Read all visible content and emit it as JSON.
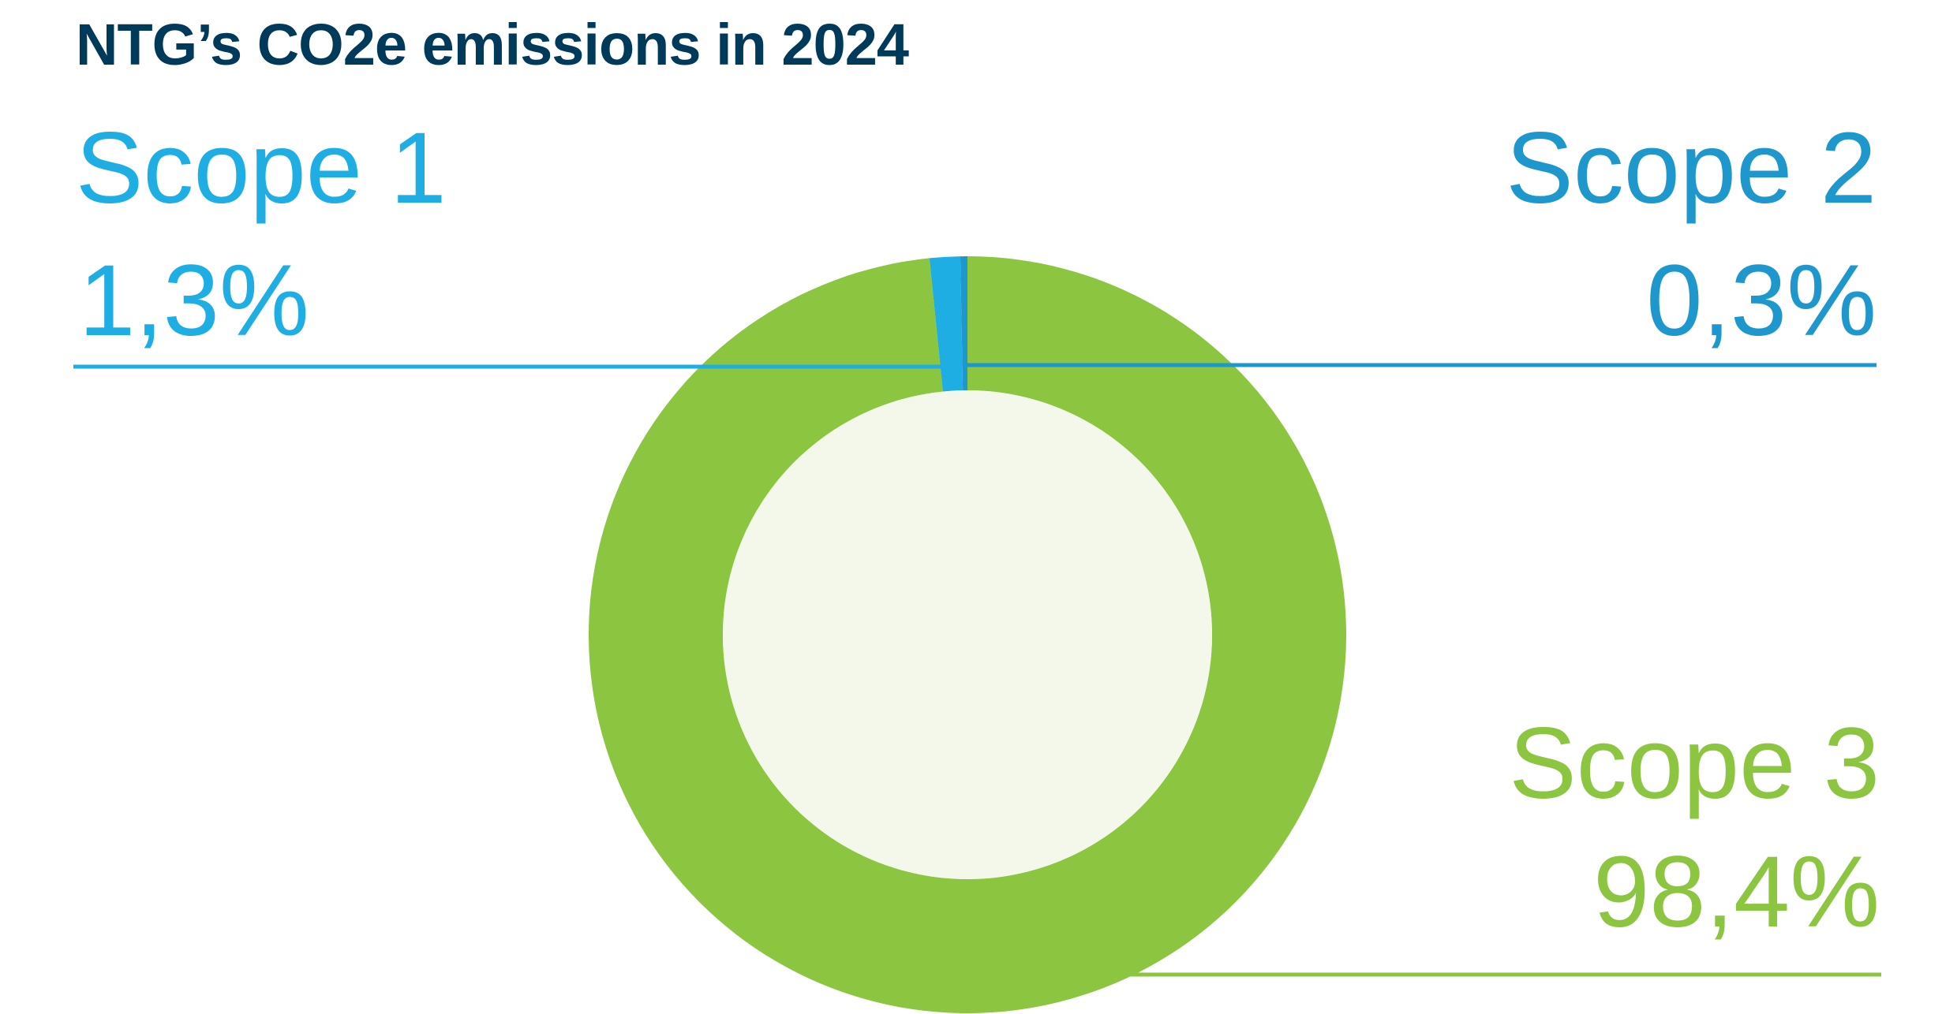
{
  "chart_data": {
    "type": "pie",
    "variant": "donut",
    "title": "NTG’s CO2e emissions in 2024",
    "slices": [
      {
        "name": "Scope 3",
        "value": 98.4,
        "label": "98,4%",
        "color": "#8cc540"
      },
      {
        "name": "Scope 1",
        "value": 1.3,
        "label": "1,3%",
        "color": "#1eaee4"
      },
      {
        "name": "Scope 2",
        "value": 0.3,
        "label": "0,3%",
        "color": "#1d97cc"
      }
    ],
    "center_color": "#f3f8ea",
    "title_color": "#003a5a"
  }
}
